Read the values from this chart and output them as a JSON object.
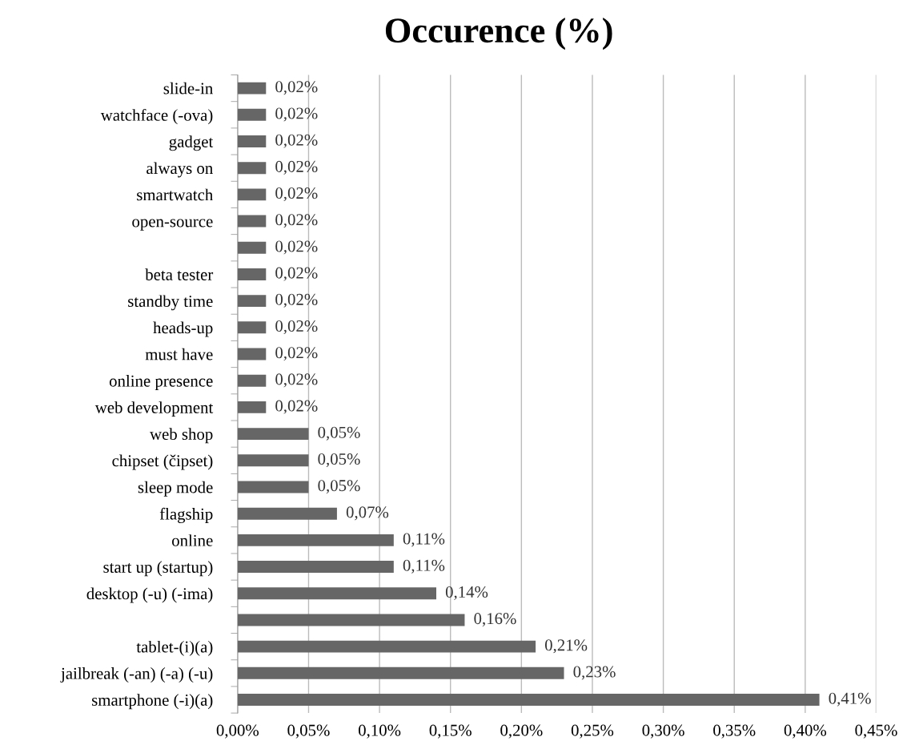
{
  "chart_data": {
    "type": "bar",
    "orientation": "horizontal",
    "title": "Occurence (%)",
    "categories": [
      "slide-in",
      "watchface (-ova)",
      "gadget",
      "always on",
      "smartwatch",
      "open-source",
      null,
      "beta tester",
      "standby time",
      "heads-up",
      "must have",
      "online presence",
      "web development",
      "web shop",
      "chipset (čipset)",
      "sleep mode",
      "flagship",
      "online",
      "start up (startup)",
      "desktop (-u) (-ima)",
      null,
      "tablet-(i)(a)",
      "jailbreak (-an) (-a) (-u)",
      "smartphone (-i)(a)"
    ],
    "values": [
      0.02,
      0.02,
      0.02,
      0.02,
      0.02,
      0.02,
      0.02,
      0.02,
      0.02,
      0.02,
      0.02,
      0.02,
      0.02,
      0.05,
      0.05,
      0.05,
      0.07,
      0.11,
      0.11,
      0.14,
      0.16,
      0.21,
      0.23,
      0.41
    ],
    "value_labels": [
      "0,02%",
      "0,02%",
      "0,02%",
      "0,02%",
      "0,02%",
      "0,02%",
      "0,02%",
      "0,02%",
      "0,02%",
      "0,02%",
      "0,02%",
      "0,02%",
      "0,02%",
      "0,05%",
      "0,05%",
      "0,05%",
      "0,07%",
      "0,11%",
      "0,11%",
      "0,14%",
      "0,16%",
      "0,21%",
      "0,23%",
      "0,41%"
    ],
    "color": "#666666",
    "xlim": [
      0,
      0.45
    ],
    "xticks": [
      {
        "value": 0,
        "label": "0,00%"
      },
      {
        "value": 0.05,
        "label": "0,05%"
      },
      {
        "value": 0.1,
        "label": "0,10%"
      },
      {
        "value": 0.15,
        "label": "0,15%"
      },
      {
        "value": 0.2,
        "label": "0,20%"
      },
      {
        "value": 0.25,
        "label": "0,25%"
      },
      {
        "value": 0.3,
        "label": "0,30%"
      },
      {
        "value": 0.35,
        "label": "0,35%"
      },
      {
        "value": 0.4,
        "label": "0,40%"
      },
      {
        "value": 0.45,
        "label": "0,45%"
      }
    ],
    "grid": "x",
    "legend": false
  }
}
